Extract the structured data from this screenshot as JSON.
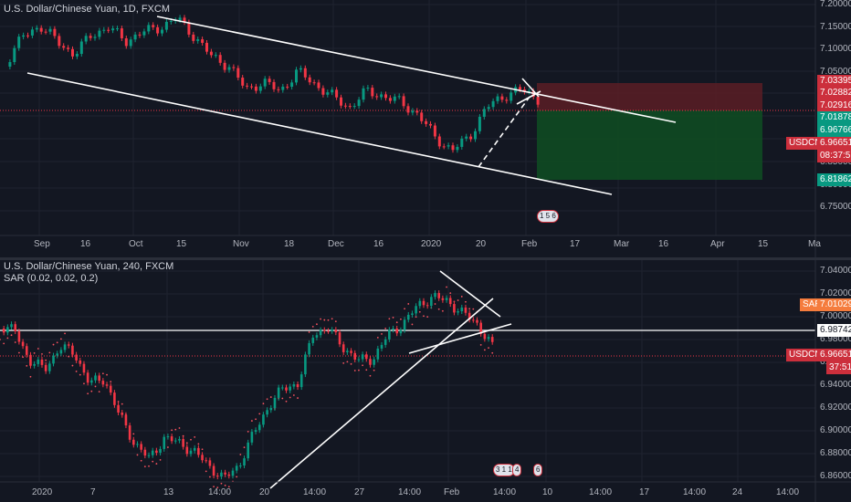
{
  "top_chart": {
    "title": "U.S. Dollar/Chinese Yuan, 1D, FXCM",
    "y_axis": [
      "7.20000",
      "7.15000",
      "7.10000",
      "7.05000",
      "7.00000",
      "6.95000",
      "6.90000",
      "6.85000",
      "6.80000",
      "6.75000"
    ],
    "price_labels": [
      {
        "text": "7.03395",
        "color": "#cc2f3c"
      },
      {
        "text": "7.02882",
        "color": "#cc2f3c"
      },
      {
        "text": "7.02916",
        "color": "#cc2f3c"
      },
      {
        "text": "7.01878",
        "color": "#089981"
      },
      {
        "text": "6.96766",
        "color": "#089981"
      },
      {
        "text": "6.96651",
        "color": "#cc2f3c"
      },
      {
        "text": "08:37:51",
        "color": "#cc2f3c"
      },
      {
        "text": "6.81862",
        "color": "#089981"
      }
    ],
    "symbol_tag": "USDCNH",
    "x_axis": [
      "Sep",
      "16",
      "Oct",
      "15",
      "Nov",
      "18",
      "Dec",
      "16",
      "2020",
      "20",
      "Feb",
      "17",
      "Mar",
      "16",
      "Apr",
      "15",
      "Ma"
    ],
    "badge": "1 5 6"
  },
  "bottom_chart": {
    "title": "U.S. Dollar/Chinese Yuan, 240, FXCM",
    "indicator": "SAR (0.02, 0.02, 0.2)",
    "y_axis": [
      "7.04000",
      "7.02000",
      "7.00000",
      "6.98000",
      "6.96000",
      "6.94000",
      "6.92000",
      "6.90000",
      "6.88000",
      "6.86000"
    ],
    "sar_tag": "SAR",
    "sar_value": "7.01029",
    "line_value": "6.98742",
    "symbol_tag": "USDCNH",
    "price_value": "6.96651",
    "countdown": "37:51",
    "x_axis": [
      "2020",
      "7",
      "13",
      "14:00",
      "20",
      "14:00",
      "27",
      "14:00",
      "Feb",
      "14:00",
      "10",
      "14:00",
      "17",
      "14:00",
      "24",
      "14:00"
    ],
    "badges": [
      "3 1 1",
      "4",
      "6"
    ]
  },
  "colors": {
    "up": "#089981",
    "down": "#f23645",
    "bg": "#131722",
    "red": "#cc2f3c",
    "green": "#089981",
    "sar": "#f7525f"
  }
}
